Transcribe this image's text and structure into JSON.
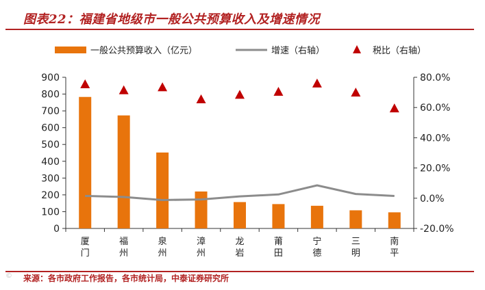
{
  "header": {
    "title": "图表22：福建省地级市一般公共预算收入及增速情况"
  },
  "footer": {
    "source": "来源：各市政府工作报告，各市统计局，中泰证券研究所",
    "watermark": "©"
  },
  "colors": {
    "bar": "#e8740c",
    "line": "#8c8c8c",
    "marker": "#c00000",
    "accent": "#b22222"
  },
  "chart_data": {
    "type": "bar",
    "categories": [
      "厦门",
      "福州",
      "泉州",
      "漳州",
      "龙岩",
      "莆田",
      "宁德",
      "三明",
      "南平"
    ],
    "series": [
      {
        "name": "一般公共预算收入（亿元）",
        "type": "bar",
        "axis": "left",
        "values": [
          783,
          673,
          452,
          220,
          157,
          145,
          135,
          108,
          96
        ]
      },
      {
        "name": "增速（右轴）",
        "type": "line",
        "axis": "right",
        "values": [
          1.5,
          0.8,
          -1.2,
          -0.8,
          1.2,
          2.5,
          8.5,
          2.8,
          1.5
        ]
      },
      {
        "name": "税比（右轴）",
        "type": "scatter",
        "marker": "triangle",
        "axis": "right",
        "values": [
          75.5,
          71.5,
          73.5,
          65.5,
          68.5,
          70.5,
          76,
          70,
          59.5
        ]
      }
    ],
    "y_left": {
      "range": [
        0,
        900
      ],
      "ticks": [
        "0",
        "100",
        "200",
        "300",
        "400",
        "500",
        "600",
        "700",
        "800",
        "900"
      ]
    },
    "y_right": {
      "range": [
        -20,
        80
      ],
      "ticks": [
        "-20.0%",
        "0.0%",
        "20.0%",
        "40.0%",
        "60.0%",
        "80.0%"
      ]
    },
    "legend": "top",
    "grid": false
  }
}
